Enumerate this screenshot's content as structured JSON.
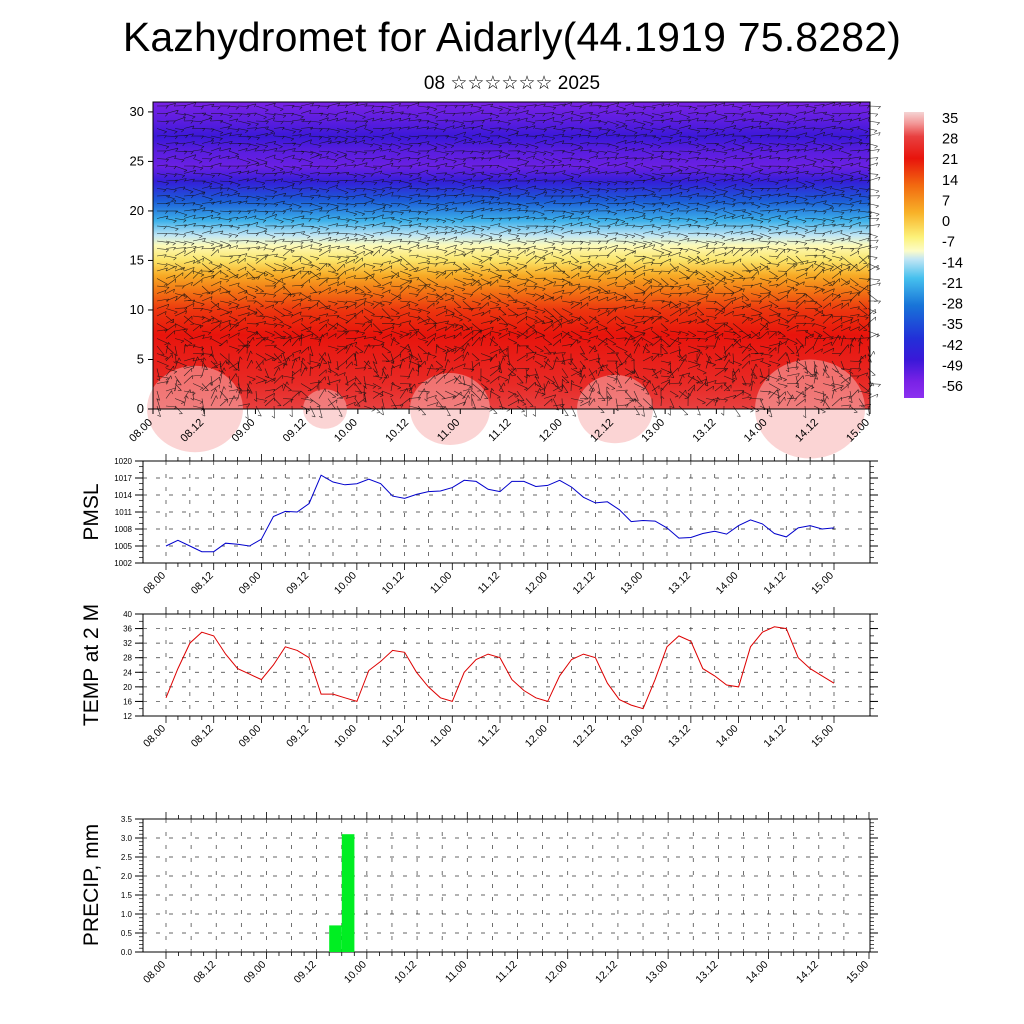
{
  "title": "Kazhydromet for Aidarly(44.1919 75.8282)",
  "subtitle": "08 ☆☆☆☆☆☆ 2025",
  "time_labels": [
    "08.00",
    "08.12",
    "09.00",
    "09.12",
    "10.00",
    "10.12",
    "11.00",
    "11.12",
    "12.00",
    "12.12",
    "13.00",
    "13.12",
    "14.00",
    "14.12",
    "15.00"
  ],
  "chart_data": [
    {
      "type": "heatmap",
      "name": "cross-section",
      "y_ticks": [
        0,
        5,
        10,
        15,
        20,
        25,
        30
      ],
      "ylim": [
        0,
        31
      ],
      "levels": [
        {
          "y": 0,
          "t": 30
        },
        {
          "y": 2.5,
          "t": 26
        },
        {
          "y": 5,
          "t": 24
        },
        {
          "y": 7.5,
          "t": 22
        },
        {
          "y": 10,
          "t": 18
        },
        {
          "y": 12,
          "t": 10
        },
        {
          "y": 13.5,
          "t": 3
        },
        {
          "y": 15,
          "t": -5
        },
        {
          "y": 16.5,
          "t": -11
        },
        {
          "y": 17.5,
          "t": -15
        },
        {
          "y": 19,
          "t": -24
        },
        {
          "y": 21,
          "t": -36
        },
        {
          "y": 23,
          "t": -50
        },
        {
          "y": 24.5,
          "t": -58
        },
        {
          "y": 26,
          "t": -56
        },
        {
          "y": 27.5,
          "t": -52
        },
        {
          "y": 29,
          "t": -56
        },
        {
          "y": 31,
          "t": -60
        }
      ],
      "colorbar": {
        "labels": [
          "35",
          "28",
          "21",
          "14",
          "7",
          "0",
          "-7",
          "-14",
          "-21",
          "-28",
          "-35",
          "-42",
          "-49",
          "-56"
        ],
        "stops": [
          {
            "t": 39,
            "c": "#f4d4d4"
          },
          {
            "t": 35,
            "c": "#f39a9a"
          },
          {
            "t": 30,
            "c": "#e84040"
          },
          {
            "t": 22,
            "c": "#e8140c"
          },
          {
            "t": 12,
            "c": "#f26a10"
          },
          {
            "t": 2,
            "c": "#f8b228"
          },
          {
            "t": -7,
            "c": "#fcf27a"
          },
          {
            "t": -12,
            "c": "#fcfcc8"
          },
          {
            "t": -15,
            "c": "#c2e6f4"
          },
          {
            "t": -22,
            "c": "#46c0ee"
          },
          {
            "t": -32,
            "c": "#1874d8"
          },
          {
            "t": -44,
            "c": "#2230d8"
          },
          {
            "t": -52,
            "c": "#3a18d8"
          },
          {
            "t": -60,
            "c": "#7a22e6"
          },
          {
            "t": -66,
            "c": "#8c30f0"
          }
        ]
      }
    },
    {
      "type": "line",
      "ylabel": "PMSL",
      "y_ticks": [
        "1020",
        "1017",
        "1014",
        "1011",
        "1008",
        "1005",
        "1002"
      ],
      "ylim": [
        1002,
        1020
      ],
      "color": "#0000cc",
      "x": [
        0,
        3,
        6,
        9,
        12,
        15,
        18,
        21,
        24,
        27,
        30,
        33,
        36,
        39,
        42,
        45,
        48,
        51,
        54,
        57,
        60,
        63,
        66,
        69,
        72,
        75,
        78,
        81,
        84,
        87,
        90,
        93,
        96,
        99,
        102,
        105,
        108,
        111,
        114,
        117,
        120,
        123,
        126,
        129,
        132,
        135,
        138,
        141,
        144,
        147,
        150,
        153,
        156,
        159,
        162,
        165,
        168
      ],
      "values": [
        1005,
        1006,
        1005,
        1004,
        1004,
        1005.5,
        1005.3,
        1005,
        1006.2,
        1010.2,
        1011.1,
        1011,
        1012.5,
        1017.5,
        1016.3,
        1015.8,
        1016,
        1016.8,
        1016,
        1013.8,
        1013.4,
        1014.1,
        1014.6,
        1014.7,
        1015.3,
        1016.6,
        1016.4,
        1015,
        1014.6,
        1016.4,
        1016.4,
        1015.5,
        1015.7,
        1016.6,
        1015.4,
        1013.6,
        1012.6,
        1012.8,
        1011.4,
        1009.3,
        1009.5,
        1009.4,
        1008.2,
        1006.4,
        1006.5,
        1007.2,
        1007.6,
        1007.1,
        1008.6,
        1009.6,
        1008.9,
        1007.2,
        1006.6,
        1008.2,
        1008.6,
        1008,
        1008.2
      ]
    },
    {
      "type": "line",
      "ylabel": "TEMP at 2 M",
      "y_ticks": [
        "40",
        "36",
        "32",
        "28",
        "24",
        "20",
        "16",
        "12"
      ],
      "ylim": [
        12,
        40
      ],
      "color": "#dd0000",
      "x": [
        0,
        3,
        6,
        9,
        12,
        15,
        18,
        21,
        24,
        27,
        30,
        33,
        36,
        39,
        42,
        45,
        48,
        51,
        54,
        57,
        60,
        63,
        66,
        69,
        72,
        75,
        78,
        81,
        84,
        87,
        90,
        93,
        96,
        99,
        102,
        105,
        108,
        111,
        114,
        117,
        120,
        123,
        126,
        129,
        132,
        135,
        138,
        141,
        144,
        147,
        150,
        153,
        156,
        159,
        162,
        165,
        168
      ],
      "values": [
        17,
        25,
        32,
        35,
        34,
        29,
        25,
        23.5,
        22,
        26,
        31,
        30,
        28,
        18,
        18,
        17,
        16,
        24.5,
        27,
        30,
        29.5,
        24,
        20,
        17,
        16,
        24,
        27.5,
        29,
        28,
        22,
        19,
        17,
        16,
        23,
        27.5,
        29,
        28,
        21,
        16.5,
        15,
        14,
        22,
        31,
        34,
        32.5,
        25,
        23,
        20.5,
        20,
        31,
        35,
        36.5,
        36,
        28,
        25,
        23,
        21
      ]
    },
    {
      "type": "bar",
      "ylabel": "PRECIP, mm",
      "y_ticks": [
        "3.5",
        "3.0",
        "2.5",
        "2.0",
        "1.5",
        "1.0",
        "0.5",
        "0.0"
      ],
      "ylim": [
        0,
        3.5
      ],
      "color": "#00ee22",
      "x": [
        39,
        42
      ],
      "values": [
        0.7,
        3.1
      ]
    }
  ]
}
